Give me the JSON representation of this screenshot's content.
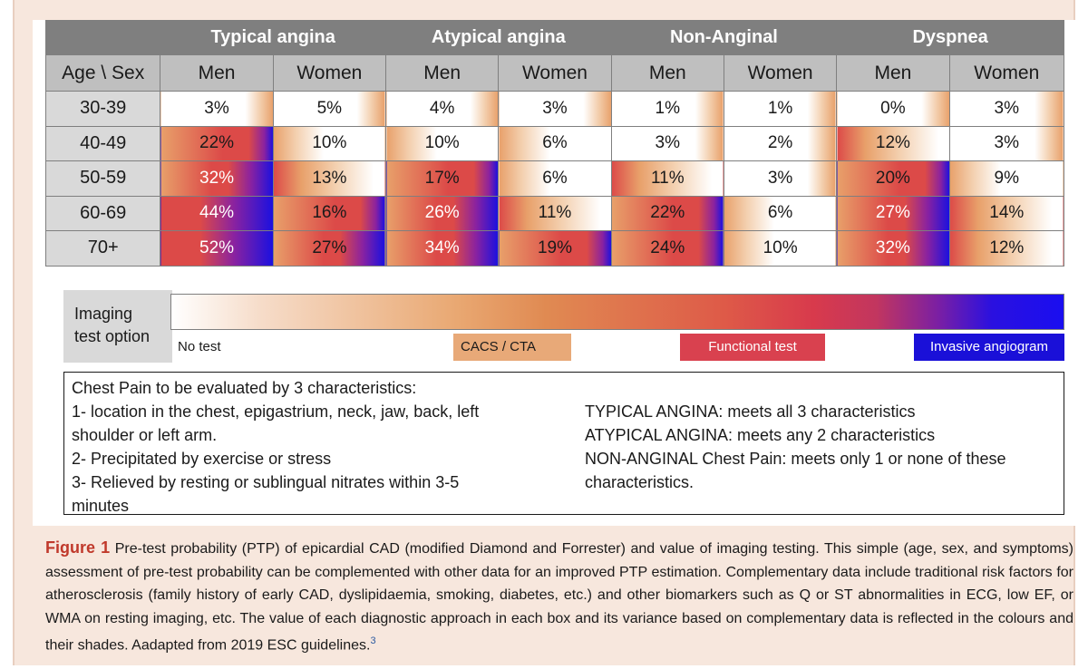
{
  "table": {
    "corner_label": "Age \\ Sex",
    "groups": [
      "Typical angina",
      "Atypical angina",
      "Non-Anginal",
      "Dyspnea"
    ],
    "sub_headers": [
      "Men",
      "Women",
      "Men",
      "Women",
      "Men",
      "Women",
      "Men",
      "Women"
    ],
    "rows": [
      {
        "age": "30-39",
        "values": [
          "3%",
          "5%",
          "4%",
          "3%",
          "1%",
          "1%",
          "0%",
          "3%"
        ]
      },
      {
        "age": "40-49",
        "values": [
          "22%",
          "10%",
          "10%",
          "6%",
          "3%",
          "2%",
          "12%",
          "3%"
        ]
      },
      {
        "age": "50-59",
        "values": [
          "32%",
          "13%",
          "17%",
          "6%",
          "11%",
          "3%",
          "20%",
          "9%"
        ]
      },
      {
        "age": "60-69",
        "values": [
          "44%",
          "16%",
          "26%",
          "11%",
          "22%",
          "6%",
          "27%",
          "14%"
        ]
      },
      {
        "age": "70+",
        "values": [
          "52%",
          "27%",
          "34%",
          "19%",
          "24%",
          "10%",
          "32%",
          "12%"
        ]
      }
    ]
  },
  "legend": {
    "label_line1": "Imaging",
    "label_line2": "test option",
    "no_test": "No test",
    "cacs": "CACS / CTA",
    "functional": "Functional test",
    "invasive": "Invasive angiogram"
  },
  "definitions": {
    "left": [
      "Chest Pain to be evaluated by 3 characteristics:",
      "1- location in the chest, epigastrium, neck, jaw, back, left",
      "shoulder or left arm.",
      "2- Precipitated by exercise or stress",
      "3- Relieved by resting or sublingual nitrates within 3-5",
      "minutes"
    ],
    "right": [
      "TYPICAL ANGINA: meets all 3 characteristics",
      "ATYPICAL ANGINA: meets any 2 characteristics",
      "NON-ANGINAL Chest Pain: meets only 1 or none of these",
      "characteristics."
    ]
  },
  "caption": {
    "label": "Figure 1",
    "text": "Pre-test probability (PTP) of epicardial CAD (modified Diamond and Forrester) and value of imaging testing. This simple (age, sex, and symptoms) assessment of pre-test probability can be complemented with other data for an improved PTP estimation. Complementary data include traditional risk factors for atherosclerosis (family history of early CAD, dyslipidaemia, smoking, diabetes, etc.) and other biomarkers such as Q or ST abnormalities in ECG, low EF, or WMA on resting imaging, etc. The value of each diagnostic approach in each box and its variance based on complementary data is reflected in the colours and their shades. Aadapted from 2019 ESC guidelines.",
    "ref": "3"
  },
  "colors": {
    "white": "#ffffff",
    "light_orange": "#f3cfae",
    "orange": "#e8a06a",
    "red": "#dc4a48",
    "purple": "#8a22a0",
    "blue": "#1a10e0"
  }
}
